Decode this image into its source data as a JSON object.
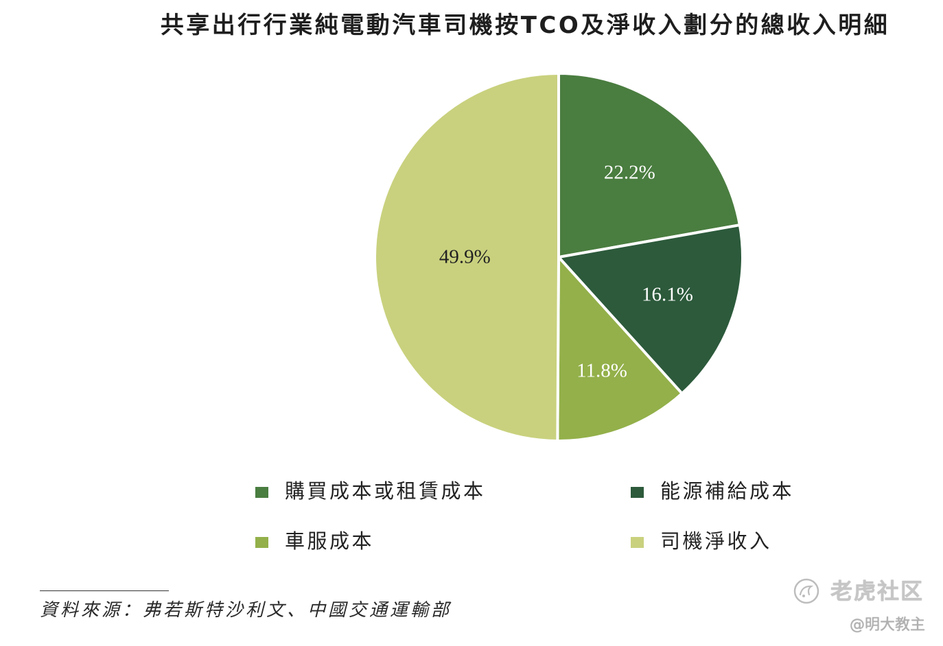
{
  "chart_data": {
    "type": "pie",
    "title": "共享出行行業純電動汽車司機按TCO及淨收入劃分的總收入明細",
    "categories": [
      "購買成本或租賃成本",
      "能源補給成本",
      "車服成本",
      "司機淨收入"
    ],
    "values": [
      22.2,
      16.1,
      11.8,
      49.9
    ],
    "labels": [
      "22.2%",
      "16.1%",
      "11.8%",
      "49.9%"
    ],
    "colors": [
      "#4a7d40",
      "#2c5a3b",
      "#93b04a",
      "#c9d17e"
    ],
    "label_colors": [
      "#ffffff",
      "#ffffff",
      "#ffffff",
      "#222222"
    ],
    "legend": "bottom"
  },
  "source": "資料來源：弗若斯特沙利文、中國交通運輸部",
  "watermark": {
    "brand": "老虎社区",
    "author": "@明大教主",
    "logo_icon": "tiger-community-logo-icon"
  }
}
